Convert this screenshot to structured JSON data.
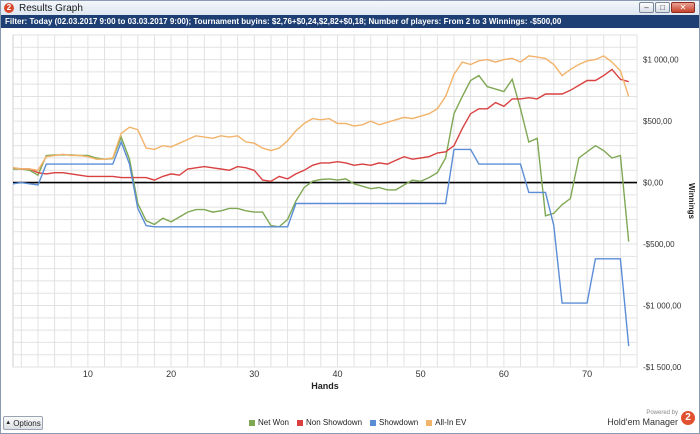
{
  "window": {
    "title": "Results Graph",
    "app_icon_glyph": "2",
    "controls": [
      "minimize-icon",
      "restore-icon",
      "close-icon"
    ]
  },
  "filter": {
    "text": "Filter: Today (02.03.2017 9:00 to 03.03.2017 9:00); Tournament buyins: $2,76+$0,24,$2,82+$0,18; Number of players: From 2 to 3 Winnings: -$500,00"
  },
  "options": {
    "label": "Options",
    "arrow_icon": "triangle-up-icon"
  },
  "brand": {
    "powered_by": "Powered by",
    "name": "Hold'em Manager",
    "logo_glyph": "2"
  },
  "colors": {
    "net_won": "#7fa854",
    "non_showdown": "#d94040",
    "showdown": "#5b8dd6",
    "all_in_ev": "#f2b36b",
    "zero_line": "#000000",
    "grid": "#e2e2e2"
  },
  "chart_data": {
    "type": "line",
    "xlabel": "Hands",
    "ylabel": "Winnings",
    "xlim": [
      1,
      76
    ],
    "ylim": [
      -1500,
      1200
    ],
    "x_ticks": [
      10,
      20,
      30,
      40,
      50,
      60,
      70
    ],
    "y_ticks": [
      1000,
      500,
      0,
      -500,
      -1000,
      -1500
    ],
    "y_tick_labels": [
      "$1 000,00",
      "$500,00",
      "$0,00",
      "-$500,00",
      "-$1 000,00",
      "-$1 500,00"
    ],
    "grid": true,
    "legend_position": "bottom",
    "series": [
      {
        "name": "Net Won",
        "color_key": "net_won",
        "values": [
          110,
          110,
          100,
          60,
          220,
          225,
          225,
          225,
          220,
          220,
          200,
          190,
          195,
          370,
          190,
          -170,
          -310,
          -340,
          -290,
          -320,
          -280,
          -240,
          -220,
          -220,
          -240,
          -230,
          -210,
          -210,
          -230,
          -240,
          -240,
          -350,
          -360,
          -300,
          -150,
          -40,
          10,
          25,
          30,
          20,
          30,
          -10,
          -30,
          -50,
          -40,
          -60,
          -60,
          -20,
          20,
          10,
          40,
          80,
          200,
          560,
          700,
          830,
          870,
          780,
          760,
          740,
          840,
          600,
          330,
          360,
          -270,
          -250,
          -180,
          -130,
          200,
          250,
          300,
          260,
          200,
          220,
          -480
        ]
      },
      {
        "name": "Non Showdown",
        "color_key": "non_showdown",
        "values": [
          120,
          110,
          110,
          80,
          70,
          80,
          80,
          70,
          60,
          50,
          50,
          50,
          50,
          40,
          40,
          40,
          40,
          20,
          50,
          70,
          60,
          110,
          120,
          130,
          120,
          110,
          100,
          130,
          120,
          100,
          20,
          10,
          50,
          30,
          70,
          100,
          140,
          160,
          160,
          170,
          160,
          140,
          150,
          140,
          160,
          150,
          180,
          210,
          190,
          200,
          210,
          240,
          250,
          300,
          440,
          560,
          600,
          600,
          650,
          620,
          680,
          680,
          690,
          680,
          720,
          720,
          720,
          750,
          790,
          830,
          830,
          870,
          920,
          840,
          820
        ]
      },
      {
        "name": "Showdown",
        "color_key": "showdown",
        "values": [
          -10,
          0,
          -10,
          -20,
          150,
          150,
          150,
          150,
          150,
          150,
          150,
          150,
          150,
          330,
          150,
          -210,
          -350,
          -360,
          -360,
          -360,
          -360,
          -360,
          -360,
          -360,
          -360,
          -360,
          -360,
          -360,
          -360,
          -360,
          -360,
          -360,
          -360,
          -360,
          -170,
          -170,
          -170,
          -170,
          -170,
          -170,
          -170,
          -170,
          -170,
          -170,
          -170,
          -170,
          -170,
          -170,
          -170,
          -170,
          -170,
          -170,
          -170,
          270,
          270,
          270,
          150,
          150,
          150,
          150,
          150,
          150,
          -80,
          -80,
          -80,
          -350,
          -980,
          -980,
          -980,
          -980,
          -620,
          -620,
          -620,
          -620,
          -1330
        ]
      },
      {
        "name": "All-In EV",
        "color_key": "all_in_ev",
        "values": [
          120,
          110,
          110,
          100,
          210,
          220,
          230,
          220,
          220,
          210,
          190,
          190,
          200,
          400,
          450,
          430,
          280,
          270,
          300,
          290,
          320,
          350,
          380,
          370,
          360,
          380,
          370,
          380,
          330,
          320,
          280,
          260,
          280,
          340,
          420,
          480,
          520,
          510,
          520,
          480,
          480,
          460,
          470,
          500,
          470,
          490,
          510,
          530,
          520,
          540,
          560,
          600,
          700,
          880,
          980,
          960,
          990,
          1000,
          980,
          1000,
          1010,
          980,
          1030,
          1020,
          1010,
          960,
          870,
          920,
          960,
          990,
          1000,
          1030,
          980,
          910,
          700
        ]
      }
    ]
  }
}
